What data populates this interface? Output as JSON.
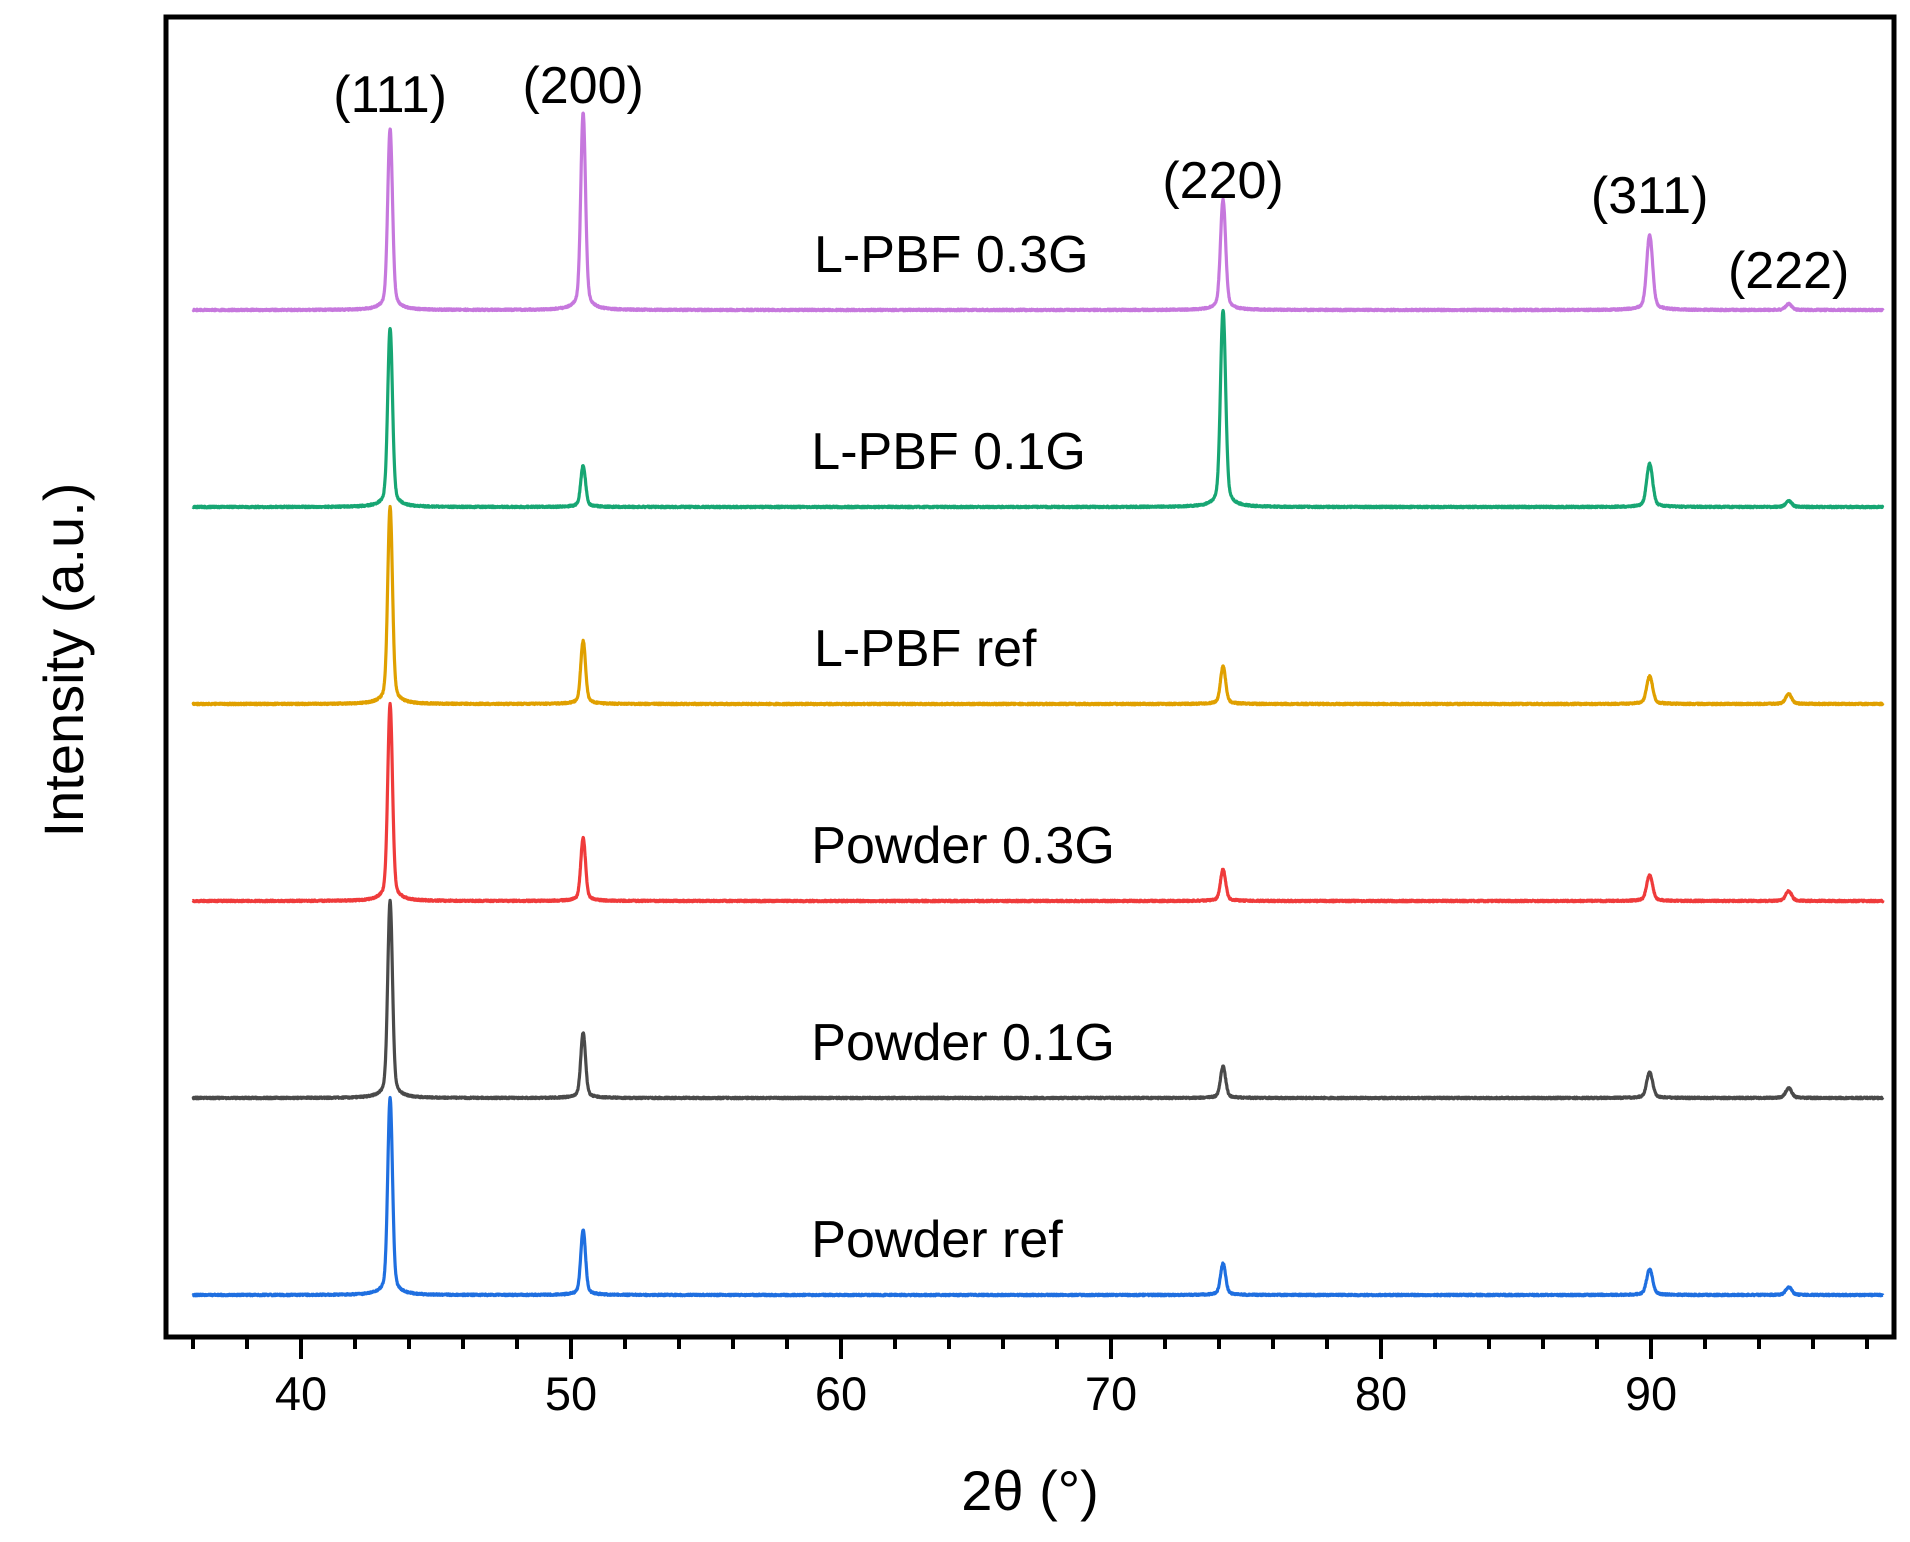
{
  "chart_data": {
    "type": "line",
    "title": "",
    "xlabel": "2θ (°)",
    "ylabel": "Intensity (a.u.)",
    "xlim": [
      35,
      99
    ],
    "x_ticks": [
      40,
      50,
      60,
      70,
      80,
      90
    ],
    "x_tick_labels": [
      "40",
      "50",
      "60",
      "70",
      "80",
      "90"
    ],
    "x_minor_step": 2,
    "y_ticks_visible": false,
    "peak_positions": [
      43.3,
      50.45,
      74.15,
      89.95,
      95.1
    ],
    "peak_widths": [
      0.12,
      0.12,
      0.13,
      0.15,
      0.15
    ],
    "peak_labels": [
      {
        "text": "(111)",
        "x": 43.3
      },
      {
        "text": "(200)",
        "x": 50.45
      },
      {
        "text": "(220)",
        "x": 74.15
      },
      {
        "text": "(311)",
        "x": 89.95
      },
      {
        "text": "(222)",
        "x": 95.1
      }
    ],
    "series": [
      {
        "name": "Powder ref",
        "label": "Powder ref",
        "color": "#1f6fe0",
        "offset": 0,
        "label_x": 58.9,
        "peaks": [
          100,
          33,
          16,
          13,
          4
        ]
      },
      {
        "name": "Powder 0.1G",
        "label": "Powder 0.1G",
        "color": "#4a4a4a",
        "offset": 1,
        "label_x": 58.9,
        "peaks": [
          100,
          33,
          16,
          13,
          5
        ]
      },
      {
        "name": "Powder 0.3G",
        "label": "Powder 0.3G",
        "color": "#ef3b3b",
        "offset": 2,
        "label_x": 58.9,
        "peaks": [
          100,
          32,
          16,
          13,
          5
        ]
      },
      {
        "name": "L-PBF ref",
        "label": "L-PBF ref",
        "color": "#e0a000",
        "offset": 3,
        "label_x": 59.0,
        "peaks": [
          100,
          32,
          19,
          14,
          5
        ]
      },
      {
        "name": "L-PBF 0.1G",
        "label": "L-PBF 0.1G",
        "color": "#17a673",
        "offset": 4,
        "label_x": 58.9,
        "peaks": [
          91,
          21,
          100,
          22,
          3
        ]
      },
      {
        "name": "L-PBF 0.3G",
        "label": "L-PBF 0.3G",
        "color": "#c678dd",
        "offset": 5,
        "label_x": 59.0,
        "peaks": [
          92,
          100,
          56,
          38,
          3
        ]
      }
    ]
  }
}
